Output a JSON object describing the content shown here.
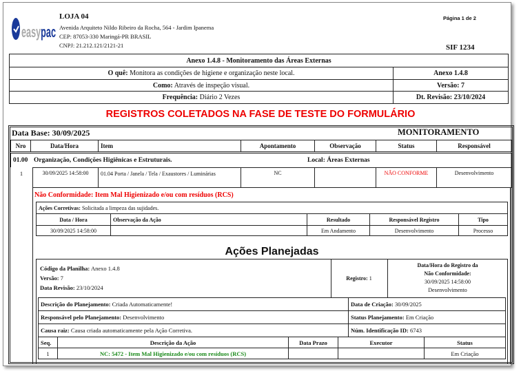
{
  "company": {
    "logo_text": "easypac",
    "name": "LOJA 04",
    "address": "Avenida Arquiteto Nildo Ribeiro da Rocha, 564 - Jardim Ipanema",
    "cep": "CEP: 87053-330 Maringá-PR  BRASIL",
    "cnpj": "CNPJ: 21.212.121/2121-21"
  },
  "page_info": "Página 1 de 2",
  "sif": "SIF 1234",
  "header": {
    "title": "Anexo 1.4.8 - Monitoramento das Áreas Externas",
    "oque_label": "O quê:",
    "oque": "Monitora as condições de higiene  e organização neste local.",
    "como_label": "Como:",
    "como": "Através de inspeção visual.",
    "freq_label": "Frequência:",
    "freq": "Diário 2 Vezes",
    "anexo": "Anexo 1.4.8",
    "versao": "Versão:   7",
    "revisao": "Dt. Revisão: 23/10/2024"
  },
  "banner": "REGISTROS COLETADOS NA FASE DE TESTE DO FORMULÁRIO",
  "main": {
    "data_base": "Data Base: 30/09/2025",
    "section": "MONITORAMENTO",
    "columns": [
      "Nro",
      "Data/Hora",
      "Item",
      "Apontamento",
      "Observação",
      "Status",
      "Responsável"
    ],
    "group": {
      "code": "01.00",
      "name": "Organização, Condições Higiênicas e Estruturais.",
      "local": "Local: Áreas Externas"
    },
    "row": {
      "nro": "1",
      "datahora": "30/09/2025  14:58:00",
      "item": "01.04  Porta / Janela / Tela / Exaustores / Luminárias",
      "apontamento": "NC",
      "observacao": "",
      "status": "NÃO CONFORME",
      "responsavel": "Desenvolvimento"
    }
  },
  "nc": {
    "title": "Não Conformidade: Item Mal Higienizado e/ou com resíduos (RCS)",
    "acoes_label": "Ações Corretivas:",
    "acoes": "Solicitada a limpeza das sujidades.",
    "columns": [
      "Data / Hora",
      "Observação da Ação",
      "Resultado",
      "Responsável Registro",
      "Tipo"
    ],
    "row": [
      "30/09/2025 14:58:00",
      "",
      "Em Andamento",
      "Desenvolvimento",
      "Processo"
    ]
  },
  "planejadas": {
    "title": "Ações Planejadas",
    "codigo_label": "Código da Planilha:",
    "codigo": "Anexo 1.4.8",
    "versao_label": "Versão:",
    "versao": "7",
    "revisao_label": "Data Revisão:",
    "revisao": "23/10/2024",
    "registro_label": "Registro:",
    "registro": "1",
    "dh_label1": "Data/Hora do Registro da",
    "dh_label2": "Não Conformidade:",
    "dh": "30/09/2025  14:58:00",
    "dh_resp": "Desenvolvimento",
    "desc_label": "Descrição do Planejamento:",
    "desc": "Criada Automaticamente!",
    "criacao_label": "Data de Criação:",
    "criacao": "30/09/2025",
    "resp_label": "Responsável pelo Planejamento:",
    "resp": "Desenvolvimento",
    "status_label": "Status Planejamento:",
    "status": "Em Criação",
    "causa_label": "Causa raiz:",
    "causa": "Causa criada automaticamente pela Ação Corretiva.",
    "id_label": "Núm. Identificação ID:",
    "id": "6743",
    "columns": [
      "Seq.",
      "Descrição da Ação",
      "Data Prazo",
      "Executor",
      "Status"
    ],
    "row": [
      "1",
      "NC: 5472 - Item Mal Higienizado e/ou com resíduos (RCS)",
      "",
      "",
      "Em Criação"
    ]
  },
  "colors": {
    "red": "#ee0000",
    "green": "#1a8a1a",
    "logo_blue": "#1a3a9a"
  }
}
